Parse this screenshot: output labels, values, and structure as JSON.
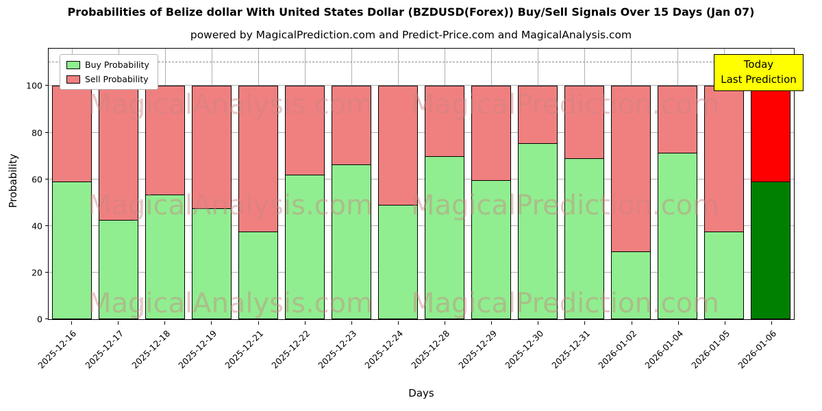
{
  "title": "Probabilities of Belize dollar With United States Dollar (BZDUSD(Forex)) Buy/Sell Signals Over 15 Days (Jan 07)",
  "subtitle": "powered by MagicalPrediction.com and Predict-Price.com and MagicalAnalysis.com",
  "annotation": {
    "line1": "Today",
    "line2": "Last Prediction"
  },
  "watermarks": {
    "left": "MagicalAnalysis.com",
    "right": "MagicalPrediction.com"
  },
  "chart_data": {
    "type": "bar",
    "stacked": true,
    "title": "Probabilities of Belize dollar With United States Dollar (BZDUSD(Forex)) Buy/Sell Signals Over 15 Days (Jan 07)",
    "xlabel": "Days",
    "ylabel": "Probability",
    "ylim": [
      0,
      116
    ],
    "yticks": [
      0,
      20,
      40,
      60,
      80,
      100
    ],
    "dashed_line_y": 110,
    "grid": true,
    "legend_position": "upper left",
    "categories": [
      "2025-12-16",
      "2025-12-17",
      "2025-12-18",
      "2025-12-19",
      "2025-12-21",
      "2025-12-22",
      "2025-12-23",
      "2025-12-24",
      "2025-12-28",
      "2025-12-29",
      "2025-12-30",
      "2025-12-31",
      "2026-01-02",
      "2026-01-04",
      "2026-01-05",
      "2026-01-06"
    ],
    "series": [
      {
        "name": "Buy Probability",
        "color": "#90ee90",
        "values": [
          59,
          42.5,
          53.5,
          47.5,
          37.5,
          62,
          66.5,
          49,
          70,
          59.5,
          75.5,
          69,
          29,
          71.5,
          37.5,
          59
        ]
      },
      {
        "name": "Sell Probability",
        "color": "#f08080",
        "values": [
          41,
          57.5,
          46.5,
          52.5,
          62.5,
          38,
          33.5,
          51,
          30,
          40.5,
          24.5,
          31,
          71,
          28.5,
          62.5,
          41
        ]
      }
    ],
    "highlight": {
      "index": 15,
      "buy_color": "#008000",
      "sell_color": "#ff0000",
      "label": "Today / Last Prediction"
    }
  }
}
